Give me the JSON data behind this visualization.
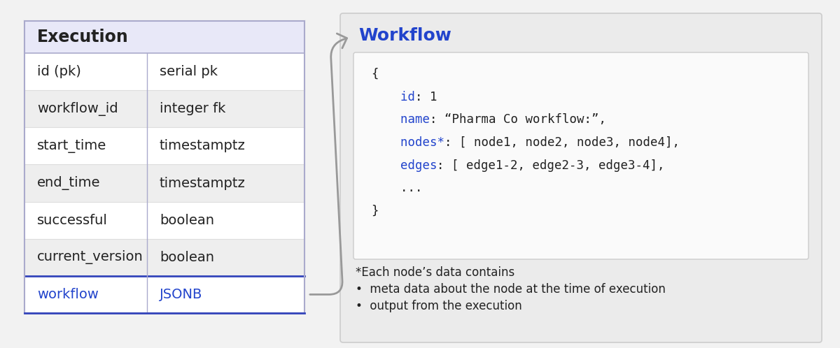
{
  "bg_color": "#f2f2f2",
  "table_title": "Execution",
  "table_header_bg": "#e8e8f8",
  "table_row_bg_odd": "#ffffff",
  "table_row_bg_even": "#eeeeee",
  "table_border_color": "#aaaacc",
  "table_last_row_border": "#3344bb",
  "table_rows": [
    [
      "id (pk)",
      "serial pk"
    ],
    [
      "workflow_id",
      "integer fk"
    ],
    [
      "start_time",
      "timestamptz"
    ],
    [
      "end_time",
      "timestamptz"
    ],
    [
      "successful",
      "boolean"
    ],
    [
      "current_version",
      "boolean"
    ],
    [
      "workflow",
      "JSONB"
    ]
  ],
  "table_last_row_color": "#2244cc",
  "workflow_title": "Workflow",
  "workflow_title_color": "#2244cc",
  "workflow_box_bg": "#ebebeb",
  "workflow_inner_box_bg": "#fafafa",
  "workflow_inner_border": "#cccccc",
  "footnote_lines": [
    "*Each node’s data contains",
    "•  meta data about the node at the time of execution",
    "•  output from the execution"
  ],
  "arrow_color": "#999999",
  "text_color": "#222222",
  "blue_key_color": "#2244cc",
  "black_color": "#222222"
}
